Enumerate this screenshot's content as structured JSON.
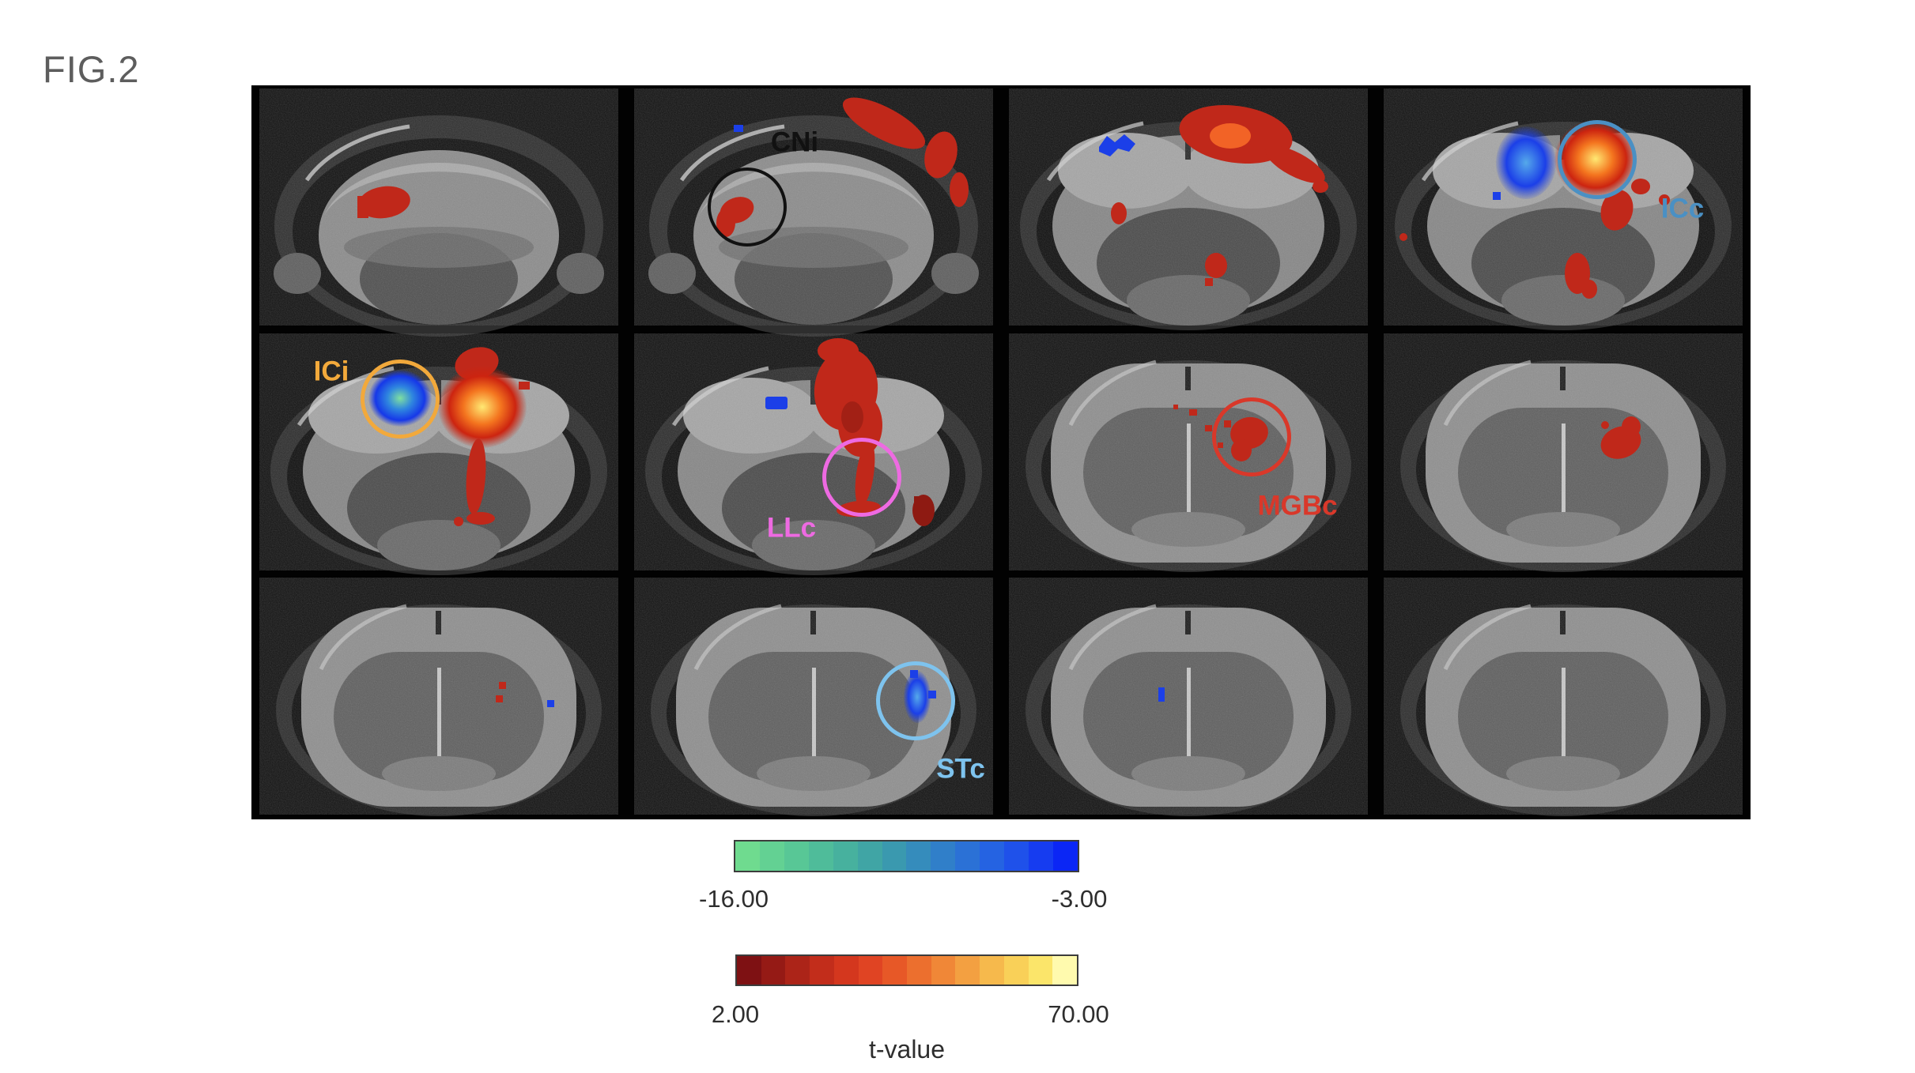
{
  "figure": {
    "label": "FIG.2"
  },
  "annotations": {
    "CNi": {
      "label": "CNi",
      "color": "#111111"
    },
    "ICi": {
      "label": "ICi",
      "color": "#F2A93B"
    },
    "ICc": {
      "label": "ICc",
      "color": "#4A90C4"
    },
    "LLc": {
      "label": "LLc",
      "color": "#EE6AE2"
    },
    "MGBc": {
      "label": "MGBc",
      "color": "#D9382A"
    },
    "STc": {
      "label": "STc",
      "color": "#7EC3EE"
    }
  },
  "overlay": {
    "hot": {
      "core": "#FFE973",
      "mid": "#F4751F",
      "edge": "#CC2410"
    },
    "cold": {
      "core": "#7FE0A0",
      "mid": "#2F86DF",
      "edge": "#1638E8"
    },
    "cold2": {
      "core": "#55A9EA",
      "edge": "#1B3FE8"
    },
    "red_flat": "#C0281A",
    "red_bright": "#F26326",
    "red_dark": "#8E1A12",
    "blue_flat": "#1B3FE8"
  },
  "colorbars": {
    "negative": {
      "min_label": "-16.00",
      "max_label": "-3.00",
      "colors": [
        "#6FDB8F",
        "#63D193",
        "#58C796",
        "#4FBC9A",
        "#47B19E",
        "#40A5A5",
        "#3A99AF",
        "#358CBC",
        "#307FC9",
        "#2B71D6",
        "#2563E2",
        "#1F51EA",
        "#163CF0",
        "#0B26F5"
      ]
    },
    "positive": {
      "min_label": "2.00",
      "max_label": "70.00",
      "colors": [
        "#7E1113",
        "#951A15",
        "#AC2418",
        "#C22D1B",
        "#D4371E",
        "#E04423",
        "#E75827",
        "#EC6F2E",
        "#F08737",
        "#F3A041",
        "#F6B94C",
        "#F9D058",
        "#FBE56A",
        "#FFFAAE"
      ]
    },
    "axis_label": "t-value"
  }
}
